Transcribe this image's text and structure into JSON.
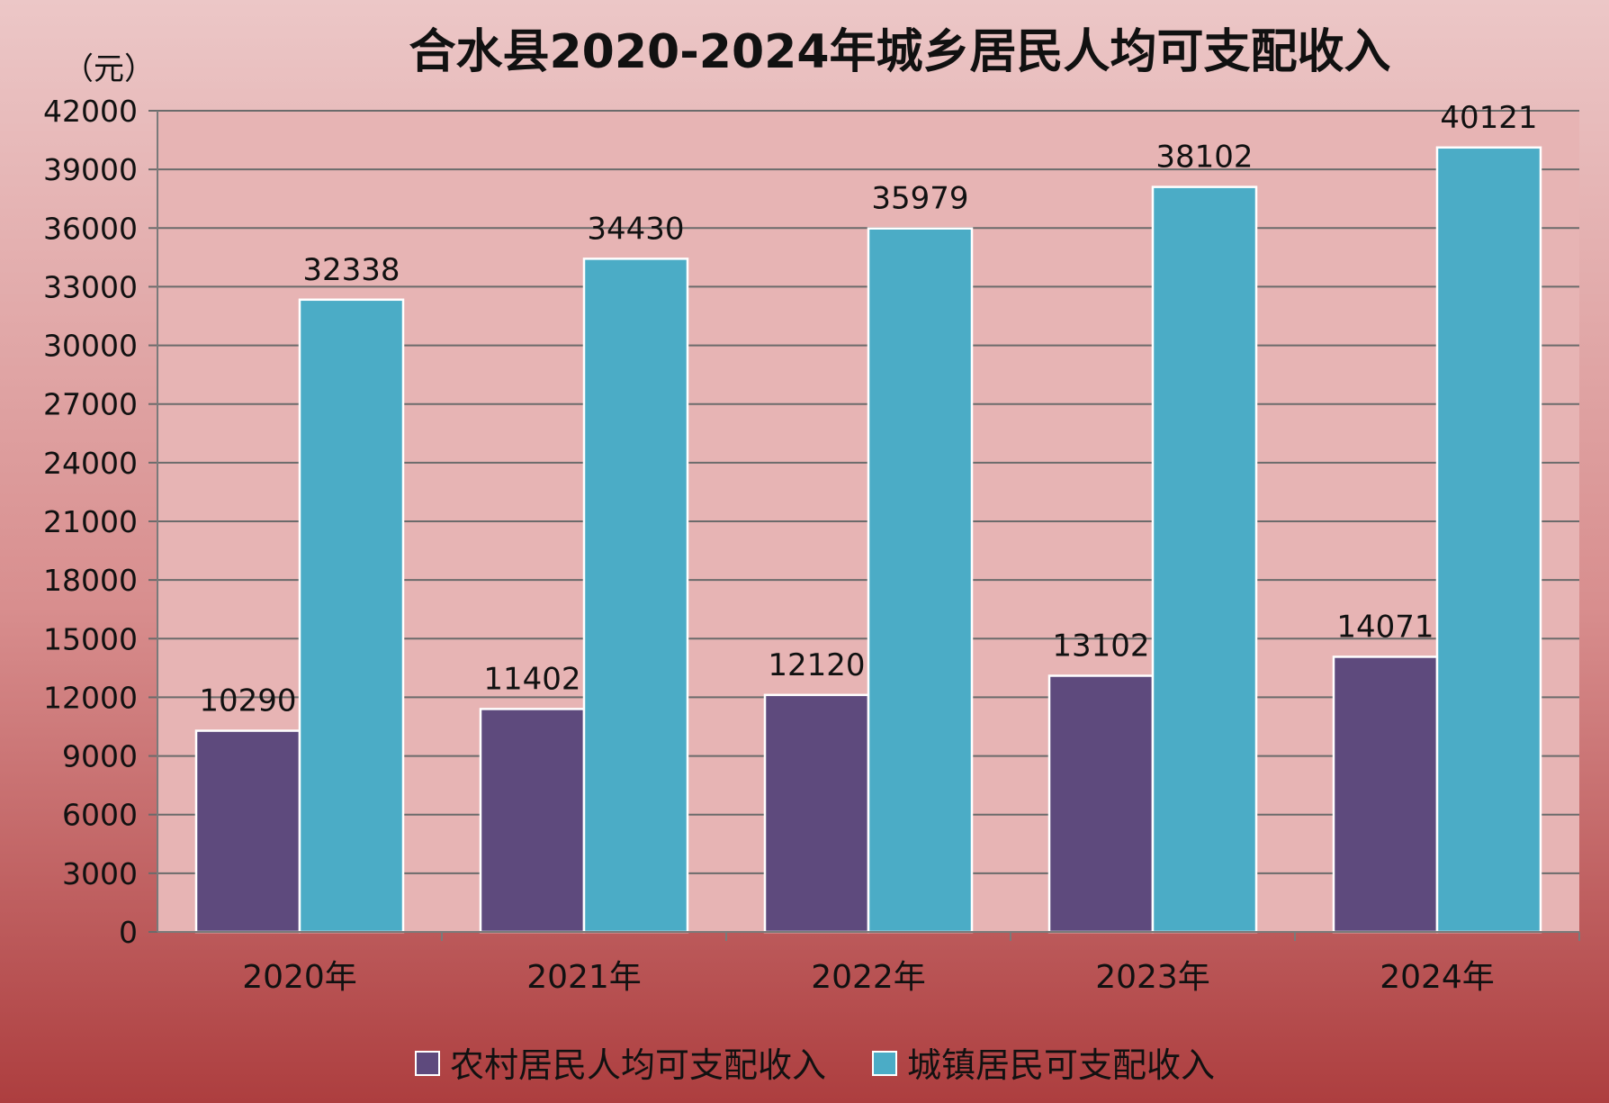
{
  "chart_data": {
    "type": "bar",
    "title": "合水县2020-2024年城乡居民人均可支配收入",
    "ylabel": "（元）",
    "xlabel": "",
    "categories": [
      "2020年",
      "2021年",
      "2022年",
      "2023年",
      "2024年"
    ],
    "series": [
      {
        "name": "农村居民人均可支配收入",
        "values": [
          10290,
          11402,
          12120,
          13102,
          14071
        ],
        "color": "#5e4a7d"
      },
      {
        "name": "城镇居民可支配收入",
        "values": [
          32338,
          34430,
          35979,
          38102,
          40121
        ],
        "color": "#4bacc6"
      }
    ],
    "ylim": [
      0,
      42000
    ],
    "yticks": [
      0,
      3000,
      6000,
      9000,
      12000,
      15000,
      18000,
      21000,
      24000,
      27000,
      30000,
      33000,
      36000,
      39000,
      42000
    ],
    "grid": true,
    "legend": "bottom",
    "data_labels": true
  },
  "colors": {
    "background_top": "#ecc7c7",
    "background_bottom": "#ad3e3f",
    "plot_area": "#e7b4b4",
    "gridline": "#6b6b6b"
  }
}
